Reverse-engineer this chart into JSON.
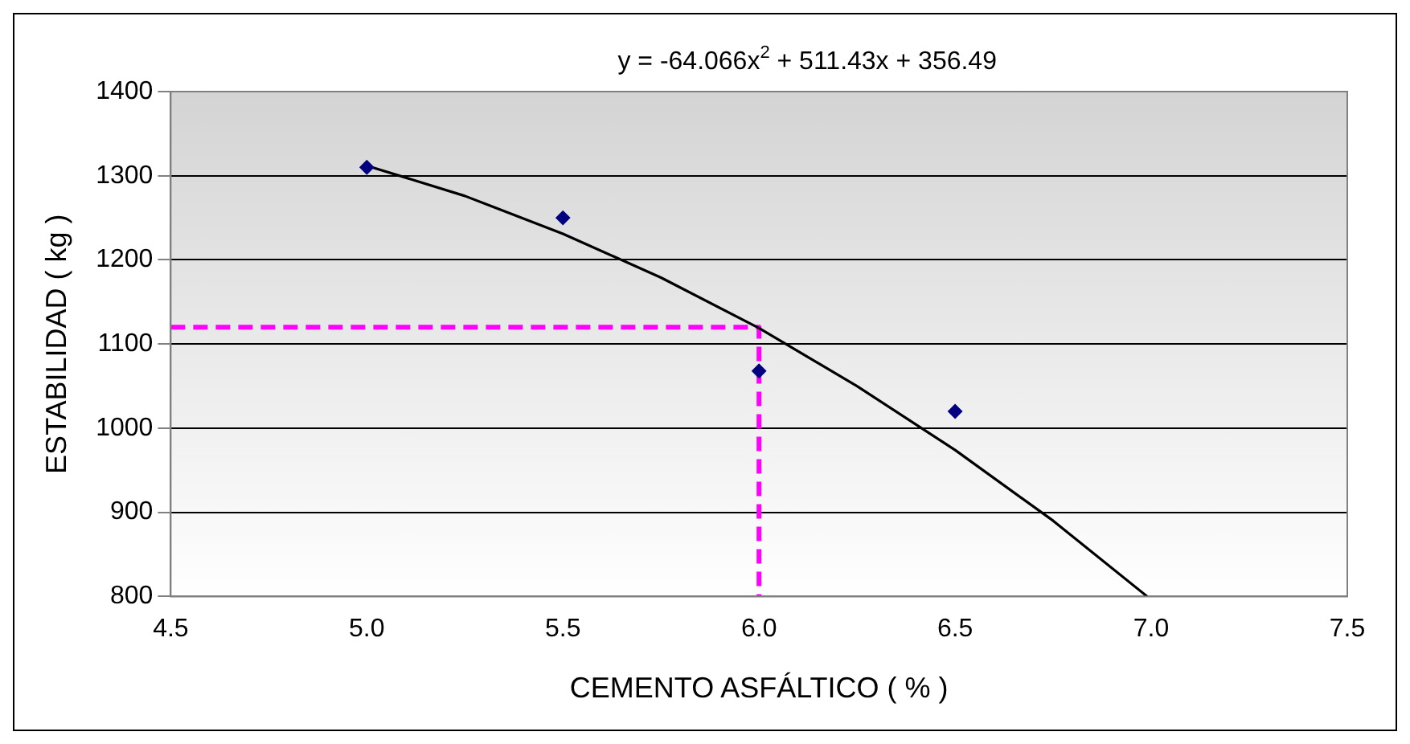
{
  "chart_data": {
    "type": "scatter",
    "xlabel": "CEMENTO ASFÁLTICO ( % )",
    "ylabel": "ESTABILIDAD ( kg )",
    "annotations": [
      "y = -64.066x$^{2}$ + 511.43x + 356.49"
    ],
    "series": [
      {
        "color": "#000080",
        "x": [
          5.0,
          5.5,
          6.0,
          6.5
        ],
        "values": [
          1310,
          1250,
          1068,
          1020
        ],
        "marker": "diamond"
      },
      {
        "type": "line",
        "color": "#000000",
        "x": [
          5.0,
          5.25,
          5.5,
          5.75,
          6.0,
          6.25,
          6.5,
          6.75,
          6.99
        ],
        "values": [
          1312,
          1276,
          1231,
          1179,
          1119,
          1050,
          974,
          890,
          800
        ],
        "marker": "none",
        "line_style": "solid"
      },
      {
        "type": "line",
        "color": "#ff00ff",
        "x": [
          4.5,
          6.0,
          6.0
        ],
        "values": [
          1120,
          1120,
          800
        ],
        "marker": "none",
        "line_style": "dashed"
      }
    ],
    "xlim": [
      4.5,
      7.5
    ],
    "xticks": [
      {
        "value": 4.5,
        "label": "4.5"
      },
      {
        "value": 5,
        "label": "5.0"
      },
      {
        "value": 5.5,
        "label": "5.5"
      },
      {
        "value": 6,
        "label": "6.0"
      },
      {
        "value": 6.5,
        "label": "6.5"
      },
      {
        "value": 7,
        "label": "7.0"
      },
      {
        "value": 7.5,
        "label": "7.5"
      }
    ],
    "ylim": [
      800,
      1400
    ],
    "yticks": [
      800,
      900,
      1000,
      1100,
      1200,
      1300,
      1400
    ],
    "grid": "y",
    "legend": false
  }
}
